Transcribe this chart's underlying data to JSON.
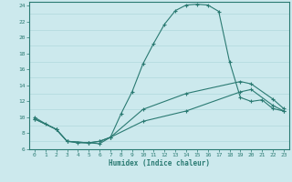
{
  "xlabel": "Humidex (Indice chaleur)",
  "background_color": "#cce9ed",
  "grid_color": "#b0d8dc",
  "line_color": "#2a7a72",
  "xlim": [
    -0.5,
    23.5
  ],
  "ylim": [
    6,
    24.5
  ],
  "xticks": [
    0,
    1,
    2,
    3,
    4,
    5,
    6,
    7,
    8,
    9,
    10,
    11,
    12,
    13,
    14,
    15,
    16,
    17,
    18,
    19,
    20,
    21,
    22,
    23
  ],
  "yticks": [
    6,
    8,
    10,
    12,
    14,
    16,
    18,
    20,
    22,
    24
  ],
  "curve1_x": [
    0,
    1,
    2,
    3,
    4,
    5,
    6,
    7,
    8,
    9,
    10,
    11,
    12,
    13,
    14,
    15,
    16,
    17,
    18,
    19,
    20,
    21,
    22,
    23
  ],
  "curve1_y": [
    10,
    9.2,
    8.5,
    7.0,
    6.8,
    6.8,
    6.7,
    7.5,
    10.5,
    13.2,
    16.7,
    19.3,
    21.7,
    23.4,
    24.1,
    24.2,
    24.1,
    23.3,
    17.0,
    12.5,
    12.0,
    12.2,
    11.1,
    10.8
  ],
  "curve2_x": [
    0,
    2,
    3,
    5,
    6,
    7,
    10,
    14,
    19,
    20,
    22,
    23
  ],
  "curve2_y": [
    9.8,
    8.5,
    7.0,
    6.8,
    7.0,
    7.5,
    11.0,
    13.0,
    14.5,
    14.2,
    12.3,
    11.1
  ],
  "curve3_x": [
    0,
    2,
    3,
    5,
    6,
    7,
    10,
    14,
    19,
    20,
    22,
    23
  ],
  "curve3_y": [
    9.8,
    8.5,
    7.0,
    6.8,
    7.0,
    7.5,
    9.5,
    10.8,
    13.2,
    13.5,
    11.5,
    10.8
  ]
}
